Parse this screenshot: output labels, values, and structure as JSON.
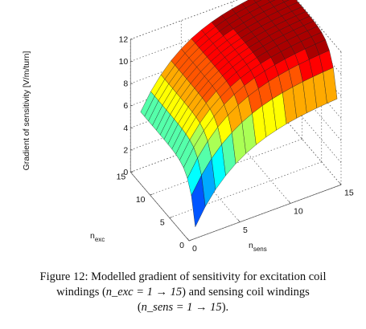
{
  "chart_data": {
    "type": "surface",
    "x": {
      "name": "n_exc",
      "label_main": "n",
      "label_sub": "exc",
      "range": [
        0,
        15
      ],
      "ticks": [
        0,
        5,
        10,
        15
      ]
    },
    "y": {
      "name": "n_sens",
      "label_main": "n",
      "label_sub": "sens",
      "range": [
        0,
        15
      ],
      "ticks": [
        0,
        5,
        10,
        15
      ]
    },
    "z": {
      "label": "Gradient of sensitivity [V/m/turn]",
      "range": [
        0,
        12
      ],
      "ticks": [
        0,
        2,
        4,
        6,
        8,
        10,
        12
      ]
    },
    "grid": true,
    "colormap": "jet",
    "n_exc_values": [
      1,
      2,
      3,
      4,
      5,
      6,
      7,
      8,
      9,
      10,
      11,
      12,
      13,
      14,
      15
    ],
    "n_sens_values": [
      1,
      2,
      3,
      4,
      5,
      6,
      7,
      8,
      9,
      10,
      11,
      12,
      13,
      14,
      15
    ],
    "corner_values": {
      "n_exc_1_n_sens_1": 0.5,
      "n_exc_15_n_sens_1": 5.0,
      "n_exc_1_n_sens_15": 2.6,
      "n_exc_15_n_sens_15": 12.2
    }
  },
  "caption": {
    "line1": "Figure 12: Modelled gradient of sensitivity for excitation coil",
    "line2_pre": "windings (",
    "line2_math": "n_exc = 1 → 15",
    "line2_post": ") and sensing coil windings",
    "line3_pre": "(",
    "line3_math": "n_sens = 1 → 15",
    "line3_post": ")."
  }
}
